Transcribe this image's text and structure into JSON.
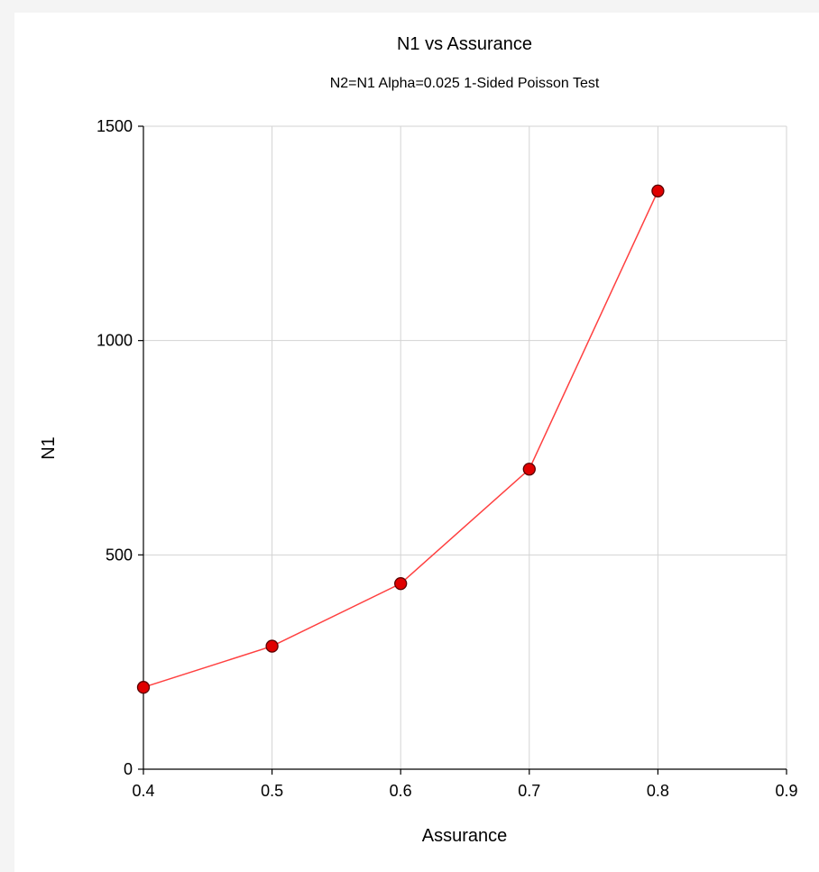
{
  "colors": {
    "series_line": "#ff4040",
    "marker_fill": "#e00000",
    "marker_stroke": "#5a0000",
    "grid": "#d3d3d3",
    "panel_background": "#ffffff",
    "page_background": "#f4f4f4"
  },
  "chart_data": {
    "type": "line",
    "title": "N1 vs Assurance",
    "subtitle": "N2=N1 Alpha=0.025 1-Sided Poisson Test",
    "xlabel": "Assurance",
    "ylabel": "N1",
    "xlim": [
      0.4,
      0.9
    ],
    "ylim": [
      0,
      1500
    ],
    "x_ticks": [
      "0.4",
      "0.5",
      "0.6",
      "0.7",
      "0.8",
      "0.9"
    ],
    "y_ticks": [
      "0",
      "500",
      "1000",
      "1500"
    ],
    "grid": true,
    "legend": "none",
    "markers": "filled circles",
    "series": [
      {
        "x": [
          0.4,
          0.5,
          0.6,
          0.7,
          0.8
        ],
        "y": [
          191,
          287,
          433,
          700,
          1349
        ]
      }
    ]
  }
}
